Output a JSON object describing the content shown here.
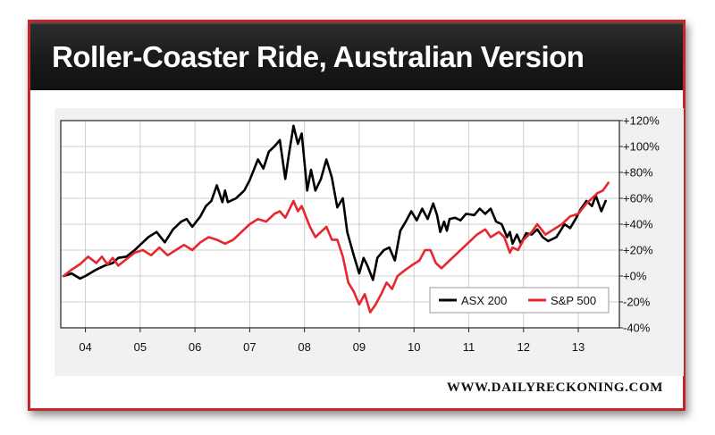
{
  "title": "Roller-Coaster Ride, Australian Version",
  "watermark": "WWW.DAILYRECKONING.COM",
  "colors": {
    "frame": "#c4262e",
    "title_bg": "#1a1a1a",
    "asx": "#000000",
    "sp500": "#e8262e",
    "plot_bg": "#ffffff",
    "grid": "#cfcfcf"
  },
  "chart_data": {
    "type": "line",
    "title": "Roller-Coaster Ride, Australian Version",
    "xlabel": "",
    "ylabel": "",
    "xlim": [
      2003.55,
      2013.75
    ],
    "ylim": [
      -40,
      120
    ],
    "x_ticks": [
      {
        "value": 2004,
        "label": "04"
      },
      {
        "value": 2005,
        "label": "05"
      },
      {
        "value": 2006,
        "label": "06"
      },
      {
        "value": 2007,
        "label": "07"
      },
      {
        "value": 2008,
        "label": "08"
      },
      {
        "value": 2009,
        "label": "09"
      },
      {
        "value": 2010,
        "label": "10"
      },
      {
        "value": 2011,
        "label": "11"
      },
      {
        "value": 2012,
        "label": "12"
      },
      {
        "value": 2013,
        "label": "13"
      }
    ],
    "y_ticks": [
      {
        "value": 120,
        "label": "+120%"
      },
      {
        "value": 100,
        "label": "+100%"
      },
      {
        "value": 80,
        "label": "+80%"
      },
      {
        "value": 60,
        "label": "+60%"
      },
      {
        "value": 40,
        "label": "+40%"
      },
      {
        "value": 20,
        "label": "+20%"
      },
      {
        "value": 0,
        "label": "+0%"
      },
      {
        "value": -20,
        "label": "-20%"
      },
      {
        "value": -40,
        "label": "-40%"
      }
    ],
    "grid": true,
    "legend": "bottom-right",
    "series": [
      {
        "name": "ASX 200",
        "color": "#000000",
        "points": [
          [
            2003.6,
            0
          ],
          [
            2003.75,
            2
          ],
          [
            2003.9,
            -2
          ],
          [
            2004.0,
            0
          ],
          [
            2004.2,
            5
          ],
          [
            2004.35,
            8
          ],
          [
            2004.5,
            10
          ],
          [
            2004.6,
            14
          ],
          [
            2004.75,
            15
          ],
          [
            2004.9,
            20
          ],
          [
            2005.0,
            24
          ],
          [
            2005.15,
            30
          ],
          [
            2005.3,
            34
          ],
          [
            2005.45,
            26
          ],
          [
            2005.6,
            36
          ],
          [
            2005.75,
            42
          ],
          [
            2005.85,
            44
          ],
          [
            2005.95,
            38
          ],
          [
            2006.1,
            46
          ],
          [
            2006.2,
            54
          ],
          [
            2006.3,
            58
          ],
          [
            2006.4,
            70
          ],
          [
            2006.5,
            57
          ],
          [
            2006.55,
            66
          ],
          [
            2006.6,
            57
          ],
          [
            2006.75,
            60
          ],
          [
            2006.9,
            66
          ],
          [
            2007.0,
            74
          ],
          [
            2007.15,
            90
          ],
          [
            2007.25,
            83
          ],
          [
            2007.35,
            96
          ],
          [
            2007.45,
            100
          ],
          [
            2007.55,
            105
          ],
          [
            2007.65,
            75
          ],
          [
            2007.72,
            95
          ],
          [
            2007.8,
            116
          ],
          [
            2007.88,
            102
          ],
          [
            2007.95,
            110
          ],
          [
            2008.05,
            66
          ],
          [
            2008.12,
            82
          ],
          [
            2008.2,
            66
          ],
          [
            2008.3,
            75
          ],
          [
            2008.4,
            90
          ],
          [
            2008.5,
            76
          ],
          [
            2008.6,
            53
          ],
          [
            2008.7,
            60
          ],
          [
            2008.78,
            34
          ],
          [
            2008.9,
            16
          ],
          [
            2009.0,
            2
          ],
          [
            2009.08,
            14
          ],
          [
            2009.15,
            8
          ],
          [
            2009.25,
            -3
          ],
          [
            2009.33,
            14
          ],
          [
            2009.45,
            20
          ],
          [
            2009.55,
            22
          ],
          [
            2009.65,
            12
          ],
          [
            2009.75,
            35
          ],
          [
            2009.85,
            42
          ],
          [
            2009.95,
            50
          ],
          [
            2010.05,
            43
          ],
          [
            2010.15,
            52
          ],
          [
            2010.25,
            44
          ],
          [
            2010.35,
            56
          ],
          [
            2010.42,
            47
          ],
          [
            2010.48,
            34
          ],
          [
            2010.55,
            42
          ],
          [
            2010.6,
            35
          ],
          [
            2010.65,
            44
          ],
          [
            2010.75,
            45
          ],
          [
            2010.85,
            43
          ],
          [
            2010.95,
            48
          ],
          [
            2011.1,
            47
          ],
          [
            2011.2,
            52
          ],
          [
            2011.3,
            48
          ],
          [
            2011.4,
            52
          ],
          [
            2011.5,
            42
          ],
          [
            2011.6,
            40
          ],
          [
            2011.7,
            30
          ],
          [
            2011.75,
            34
          ],
          [
            2011.8,
            25
          ],
          [
            2011.88,
            32
          ],
          [
            2011.95,
            25
          ],
          [
            2012.05,
            33
          ],
          [
            2012.15,
            32
          ],
          [
            2012.25,
            36
          ],
          [
            2012.35,
            30
          ],
          [
            2012.45,
            27
          ],
          [
            2012.6,
            30
          ],
          [
            2012.75,
            40
          ],
          [
            2012.85,
            37
          ],
          [
            2012.95,
            44
          ],
          [
            2013.05,
            52
          ],
          [
            2013.15,
            58
          ],
          [
            2013.25,
            54
          ],
          [
            2013.32,
            62
          ],
          [
            2013.42,
            50
          ],
          [
            2013.5,
            58
          ]
        ]
      },
      {
        "name": "S&P 500",
        "color": "#e8262e",
        "points": [
          [
            2003.6,
            0
          ],
          [
            2003.75,
            5
          ],
          [
            2003.9,
            9
          ],
          [
            2004.05,
            15
          ],
          [
            2004.2,
            10
          ],
          [
            2004.3,
            15
          ],
          [
            2004.4,
            9
          ],
          [
            2004.5,
            14
          ],
          [
            2004.6,
            8
          ],
          [
            2004.75,
            13
          ],
          [
            2004.9,
            18
          ],
          [
            2005.05,
            20
          ],
          [
            2005.2,
            16
          ],
          [
            2005.35,
            22
          ],
          [
            2005.5,
            16
          ],
          [
            2005.65,
            20
          ],
          [
            2005.8,
            24
          ],
          [
            2005.95,
            20
          ],
          [
            2006.1,
            26
          ],
          [
            2006.25,
            30
          ],
          [
            2006.4,
            28
          ],
          [
            2006.55,
            25
          ],
          [
            2006.7,
            28
          ],
          [
            2006.85,
            34
          ],
          [
            2007.0,
            40
          ],
          [
            2007.15,
            44
          ],
          [
            2007.3,
            42
          ],
          [
            2007.45,
            48
          ],
          [
            2007.55,
            50
          ],
          [
            2007.65,
            45
          ],
          [
            2007.8,
            58
          ],
          [
            2007.88,
            50
          ],
          [
            2007.95,
            54
          ],
          [
            2008.1,
            38
          ],
          [
            2008.2,
            30
          ],
          [
            2008.3,
            34
          ],
          [
            2008.4,
            38
          ],
          [
            2008.5,
            28
          ],
          [
            2008.6,
            28
          ],
          [
            2008.7,
            15
          ],
          [
            2008.8,
            -5
          ],
          [
            2008.9,
            -12
          ],
          [
            2009.0,
            -22
          ],
          [
            2009.1,
            -14
          ],
          [
            2009.2,
            -28
          ],
          [
            2009.3,
            -22
          ],
          [
            2009.4,
            -14
          ],
          [
            2009.5,
            -5
          ],
          [
            2009.6,
            -10
          ],
          [
            2009.7,
            0
          ],
          [
            2009.85,
            5
          ],
          [
            2009.95,
            8
          ],
          [
            2010.1,
            12
          ],
          [
            2010.2,
            20
          ],
          [
            2010.3,
            20
          ],
          [
            2010.4,
            10
          ],
          [
            2010.5,
            6
          ],
          [
            2010.6,
            10
          ],
          [
            2010.75,
            16
          ],
          [
            2010.9,
            22
          ],
          [
            2011.05,
            28
          ],
          [
            2011.15,
            32
          ],
          [
            2011.3,
            36
          ],
          [
            2011.4,
            30
          ],
          [
            2011.55,
            34
          ],
          [
            2011.65,
            30
          ],
          [
            2011.75,
            18
          ],
          [
            2011.8,
            22
          ],
          [
            2011.9,
            20
          ],
          [
            2012.0,
            28
          ],
          [
            2012.15,
            34
          ],
          [
            2012.25,
            40
          ],
          [
            2012.4,
            32
          ],
          [
            2012.55,
            36
          ],
          [
            2012.7,
            40
          ],
          [
            2012.85,
            46
          ],
          [
            2013.0,
            48
          ],
          [
            2013.15,
            56
          ],
          [
            2013.25,
            60
          ],
          [
            2013.35,
            64
          ],
          [
            2013.45,
            66
          ],
          [
            2013.55,
            72
          ]
        ]
      }
    ]
  }
}
